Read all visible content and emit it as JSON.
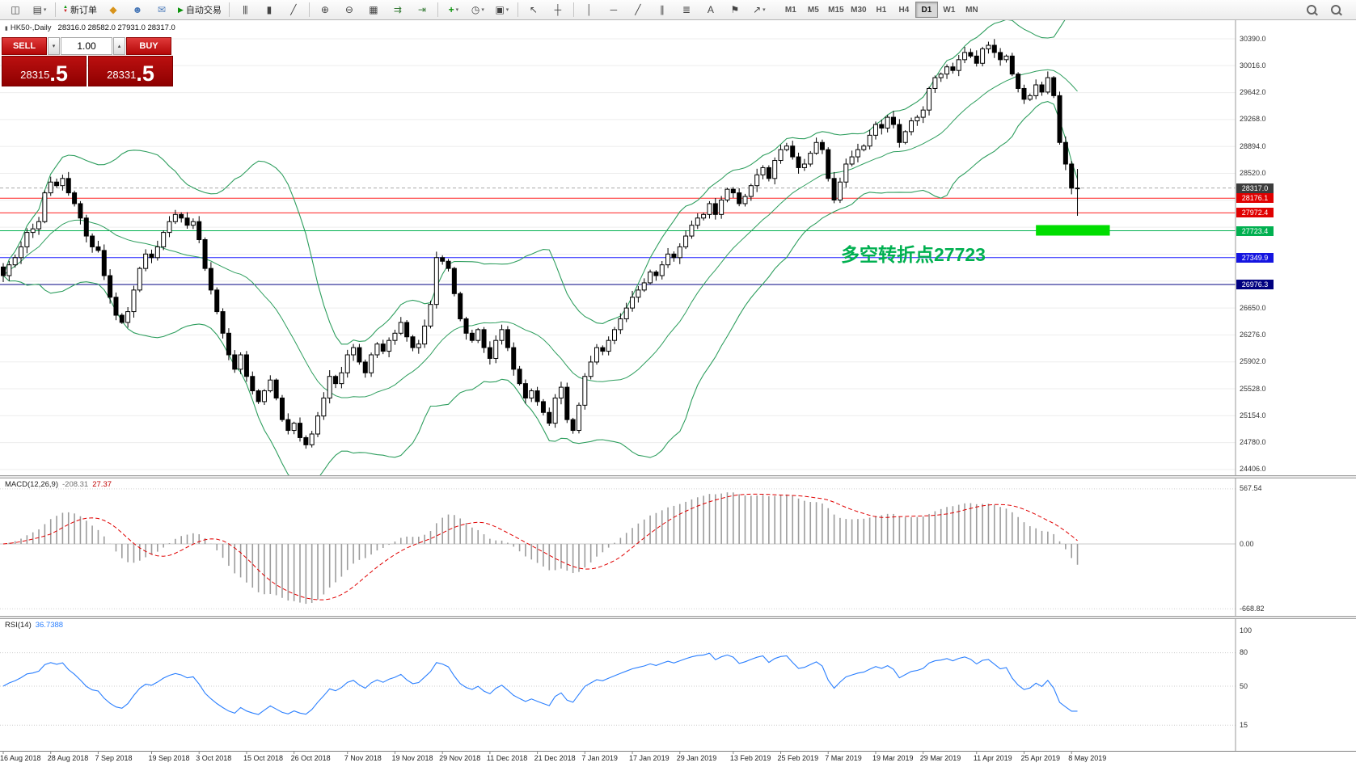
{
  "toolbar": {
    "dropdown_glyph": "▾",
    "play_glyph": "▶",
    "up_glyph": "▲",
    "down_glyph": "▼",
    "timeframes": [
      "M1",
      "M5",
      "M15",
      "M30",
      "H1",
      "H4",
      "D1",
      "W1",
      "MN"
    ],
    "active_timeframe": "D1",
    "tools": [
      {
        "name": "new-chart-icon",
        "glyph": "◫"
      },
      {
        "name": "chart-profiles-icon",
        "glyph": "▤",
        "dropdown": true
      },
      {
        "sep": true
      },
      {
        "name": "new-order-button",
        "label": "新订单",
        "icon": "updown"
      },
      {
        "name": "mql5-market-icon",
        "glyph": "◆",
        "color": "#d8941c"
      },
      {
        "name": "mql5-profile-icon",
        "glyph": "☻",
        "color": "#4a79b8"
      },
      {
        "name": "mql5-chat-icon",
        "glyph": "✉",
        "color": "#4a79b8"
      },
      {
        "name": "auto-trading-button",
        "label": "自动交易",
        "icon": "play"
      },
      {
        "sep": true
      },
      {
        "name": "bars-mode-icon",
        "glyph": "|||"
      },
      {
        "name": "candles-mode-icon",
        "glyph": "▮"
      },
      {
        "name": "line-mode-icon",
        "glyph": "╱"
      },
      {
        "sep": true
      },
      {
        "name": "zoom-in-icon",
        "glyph": "⊕"
      },
      {
        "name": "zoom-out-icon",
        "glyph": "⊖"
      },
      {
        "name": "tile-windows-icon",
        "glyph": "▦"
      },
      {
        "name": "auto-scroll-icon",
        "glyph": "⇉",
        "color": "#3a7d3a"
      },
      {
        "name": "chart-shift-icon",
        "glyph": "⇥",
        "color": "#3a7d3a"
      },
      {
        "sep": true
      },
      {
        "name": "indicators-button",
        "glyph": "+",
        "color": "#0c930c",
        "dropdown": true
      },
      {
        "name": "periods-button",
        "glyph": "◷",
        "dropdown": true
      },
      {
        "name": "templates-button",
        "glyph": "▣",
        "dropdown": true
      },
      {
        "sep": true
      },
      {
        "name": "cursor-icon",
        "glyph": "↖"
      },
      {
        "name": "crosshair-icon",
        "glyph": "┼"
      },
      {
        "sep": true
      },
      {
        "name": "vertical-line-icon",
        "glyph": "│"
      },
      {
        "name": "horizontal-line-icon",
        "glyph": "─"
      },
      {
        "name": "trendline-icon",
        "glyph": "╱"
      },
      {
        "name": "channel-icon",
        "glyph": "∥"
      },
      {
        "name": "fibonacci-icon",
        "glyph": "≣"
      },
      {
        "name": "text-icon",
        "glyph": "A"
      },
      {
        "name": "label-icon",
        "glyph": "⚑"
      },
      {
        "name": "shapes-icon",
        "glyph": "↗",
        "dropdown": true
      }
    ]
  },
  "chart": {
    "icon_glyph": "▮",
    "title": "HK50-,Daily",
    "ohlc_text": "28316.0 28582.0 27931.0 28317.0",
    "annotation": "多空转折点27723",
    "annotation_color": "#00b050"
  },
  "order_panel": {
    "sell_label": "SELL",
    "buy_label": "BUY",
    "volume": "1.00",
    "dropdown_glyph": "▾",
    "spin_glyph": "▴",
    "sell_price": "28315",
    "sell_price_frac": ".5",
    "buy_price": "28331",
    "buy_price_frac": ".5"
  },
  "price_axis": {
    "ticks": [
      "30390.0",
      "30016.0",
      "29642.0",
      "29268.0",
      "28894.0",
      "28520.0",
      "26650.0",
      "26276.0",
      "25902.0",
      "25528.0",
      "25154.0",
      "24780.0",
      "24406.0"
    ],
    "tick_values": [
      30390,
      30016,
      29642,
      29268,
      28894,
      28520,
      26650,
      26276,
      25902,
      25528,
      25154,
      24780,
      24406
    ],
    "tags": [
      {
        "label": "28317.0",
        "value": 28317.0,
        "color": "#3c3c3c"
      },
      {
        "label": "28176.1",
        "value": 28176.1,
        "color": "#e00000"
      },
      {
        "label": "27972.4",
        "value": 27972.4,
        "color": "#e00000"
      },
      {
        "label": "27723.4",
        "value": 27723.4,
        "color": "#00b050"
      },
      {
        "label": "27349.9",
        "value": 27349.9,
        "color": "#1515e0"
      },
      {
        "label": "26976.3",
        "value": 26976.3,
        "color": "#000080"
      }
    ]
  },
  "macd": {
    "label": "MACD(12,26,9)",
    "main_value": "-208.31",
    "signal_value": "27.37",
    "axis": [
      "567.54",
      "0.00",
      "-668.82"
    ],
    "axis_values": [
      567.54,
      0,
      -668.82
    ]
  },
  "rsi": {
    "label": "RSI(14)",
    "value": "36.7388",
    "axis": [
      "100",
      "80",
      "50",
      "15"
    ],
    "axis_values": [
      100,
      80,
      50,
      15
    ]
  },
  "chart_data": {
    "type": "candlestick",
    "symbol": "HK50",
    "timeframe": "Daily",
    "title": "HK50-,Daily",
    "y_axis": {
      "min": 24406.0,
      "max": 30390.0,
      "tick_step": 374.0
    },
    "x_ticks": {
      "labels": [
        "16 Aug 2018",
        "28 Aug 2018",
        "7 Sep 2018",
        "19 Sep 2018",
        "3 Oct 2018",
        "15 Oct 2018",
        "26 Oct 2018",
        "7 Nov 2018",
        "19 Nov 2018",
        "29 Nov 2018",
        "11 Dec 2018",
        "21 Dec 2018",
        "7 Jan 2019",
        "17 Jan 2019",
        "29 Jan 2019",
        "13 Feb 2019",
        "25 Feb 2019",
        "7 Mar 2019",
        "19 Mar 2019",
        "29 Mar 2019",
        "11 Apr 2019",
        "25 Apr 2019",
        "8 May 2019"
      ],
      "indices": [
        0,
        8,
        16,
        25,
        33,
        41,
        49,
        58,
        66,
        74,
        82,
        90,
        98,
        106,
        114,
        123,
        131,
        139,
        147,
        155,
        164,
        172,
        180
      ]
    },
    "closes": [
      27100,
      27250,
      27350,
      27500,
      27700,
      27750,
      27850,
      28250,
      28400,
      28350,
      28450,
      28250,
      28100,
      27900,
      27650,
      27500,
      27450,
      27100,
      26800,
      26550,
      26450,
      26600,
      26900,
      27200,
      27400,
      27350,
      27500,
      27700,
      27850,
      27950,
      27900,
      27800,
      27850,
      27600,
      27200,
      26900,
      26600,
      26300,
      26000,
      25800,
      26000,
      25700,
      25500,
      25350,
      25500,
      25650,
      25400,
      25100,
      24950,
      25050,
      24850,
      24750,
      24900,
      25150,
      25400,
      25700,
      25600,
      25750,
      26000,
      26100,
      25900,
      25750,
      26000,
      26150,
      26050,
      26200,
      26300,
      26450,
      26250,
      26100,
      26150,
      26400,
      26700,
      27350,
      27300,
      27200,
      26850,
      26500,
      26300,
      26200,
      26350,
      26100,
      25950,
      26200,
      26350,
      26100,
      25800,
      25600,
      25400,
      25500,
      25350,
      25200,
      25050,
      25400,
      25550,
      25100,
      24950,
      25300,
      25700,
      25900,
      26100,
      26050,
      26200,
      26350,
      26500,
      26650,
      26800,
      26900,
      27000,
      27150,
      27100,
      27250,
      27400,
      27350,
      27500,
      27650,
      27800,
      27900,
      27950,
      28100,
      27950,
      28150,
      28300,
      28250,
      28100,
      28200,
      28350,
      28500,
      28600,
      28450,
      28700,
      28850,
      28900,
      28750,
      28600,
      28650,
      28800,
      28950,
      28850,
      28450,
      28150,
      28400,
      28650,
      28750,
      28850,
      28900,
      29050,
      29200,
      29150,
      29300,
      29200,
      28950,
      29100,
      29250,
      29300,
      29400,
      29700,
      29850,
      29900,
      30000,
      29950,
      30100,
      30200,
      30150,
      30050,
      30250,
      30300,
      30200,
      30100,
      30150,
      29900,
      29700,
      29550,
      29600,
      29750,
      29650,
      29850,
      29600,
      28950,
      28650,
      28316,
      28317
    ],
    "last_candle": {
      "open": 28316.0,
      "high": 28582.0,
      "low": 27931.0,
      "close": 28317.0
    },
    "levels": [
      {
        "value": 28317.0,
        "color": "#aaaaaa",
        "style": "dashed"
      },
      {
        "value": 28176.1,
        "color": "#ff2020",
        "style": "solid"
      },
      {
        "value": 27972.4,
        "color": "#ff2020",
        "style": "solid"
      },
      {
        "value": 27723.4,
        "color": "#00b050",
        "style": "solid"
      },
      {
        "value": 27349.9,
        "color": "#2020ff",
        "style": "solid"
      },
      {
        "value": 26976.3,
        "color": "#000080",
        "style": "solid"
      }
    ],
    "highlight": {
      "level": 27723.4,
      "color": "#00dd00"
    },
    "overlays": [
      {
        "name": "Bollinger Bands",
        "period": 20,
        "deviation": 2,
        "color": "#2e9e5e"
      }
    ],
    "indicators": [
      {
        "name": "MACD",
        "params": [
          12,
          26,
          9
        ],
        "main": -208.31,
        "signal": 27.37,
        "axis": [
          567.54,
          0.0,
          -668.82
        ]
      },
      {
        "name": "RSI",
        "params": [
          14
        ],
        "value": 36.7388,
        "axis": [
          100,
          80,
          50,
          15
        ]
      }
    ]
  }
}
